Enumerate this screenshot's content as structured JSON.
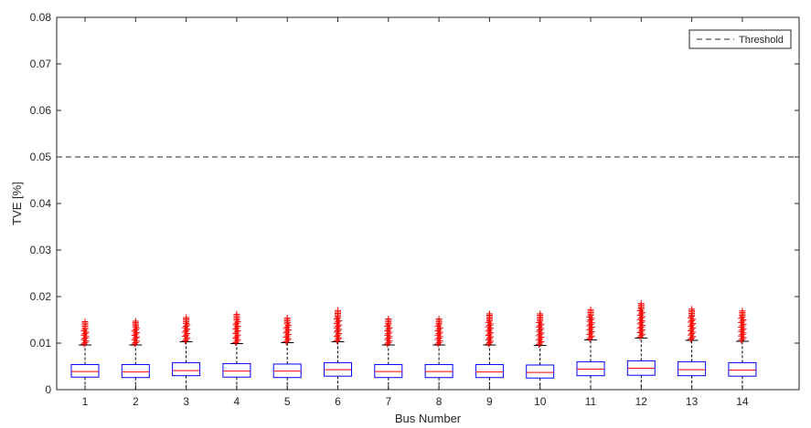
{
  "chart_data": {
    "type": "box",
    "title": "",
    "xlabel": "Bus Number",
    "ylabel": "TVE [%]",
    "ylim": [
      0,
      0.08
    ],
    "yticks": [
      0,
      0.01,
      0.02,
      0.03,
      0.04,
      0.05,
      0.06,
      0.07,
      0.08
    ],
    "ytick_labels": [
      "0",
      "0.01",
      "0.02",
      "0.03",
      "0.04",
      "0.05",
      "0.06",
      "0.07",
      "0.08"
    ],
    "categories": [
      "1",
      "2",
      "3",
      "4",
      "5",
      "6",
      "7",
      "8",
      "9",
      "10",
      "11",
      "12",
      "13",
      "14"
    ],
    "boxes": [
      {
        "whisker_low": 0.0,
        "q1": 0.0027,
        "median": 0.0039,
        "q3": 0.0054,
        "whisker_high": 0.0096,
        "outlier_min": 0.0098,
        "outlier_max": 0.0146
      },
      {
        "whisker_low": 0.0,
        "q1": 0.0026,
        "median": 0.0038,
        "q3": 0.0054,
        "whisker_high": 0.0096,
        "outlier_min": 0.0098,
        "outlier_max": 0.0147
      },
      {
        "whisker_low": 0.0,
        "q1": 0.003,
        "median": 0.0041,
        "q3": 0.0058,
        "whisker_high": 0.0103,
        "outlier_min": 0.0105,
        "outlier_max": 0.0155
      },
      {
        "whisker_low": 0.0,
        "q1": 0.0027,
        "median": 0.004,
        "q3": 0.0056,
        "whisker_high": 0.0099,
        "outlier_min": 0.0101,
        "outlier_max": 0.0162
      },
      {
        "whisker_low": 0.0,
        "q1": 0.0026,
        "median": 0.004,
        "q3": 0.0055,
        "whisker_high": 0.0101,
        "outlier_min": 0.0103,
        "outlier_max": 0.0154
      },
      {
        "whisker_low": 0.0,
        "q1": 0.0029,
        "median": 0.0043,
        "q3": 0.0058,
        "whisker_high": 0.0103,
        "outlier_min": 0.0105,
        "outlier_max": 0.017
      },
      {
        "whisker_low": 0.0,
        "q1": 0.0026,
        "median": 0.0039,
        "q3": 0.0054,
        "whisker_high": 0.0096,
        "outlier_min": 0.0098,
        "outlier_max": 0.0152
      },
      {
        "whisker_low": 0.0,
        "q1": 0.0026,
        "median": 0.0039,
        "q3": 0.0054,
        "whisker_high": 0.0096,
        "outlier_min": 0.0098,
        "outlier_max": 0.0152
      },
      {
        "whisker_low": 0.0,
        "q1": 0.0026,
        "median": 0.0038,
        "q3": 0.0054,
        "whisker_high": 0.0096,
        "outlier_min": 0.0098,
        "outlier_max": 0.0163
      },
      {
        "whisker_low": 0.0,
        "q1": 0.0025,
        "median": 0.0037,
        "q3": 0.0053,
        "whisker_high": 0.0095,
        "outlier_min": 0.0097,
        "outlier_max": 0.0163
      },
      {
        "whisker_low": 0.0,
        "q1": 0.003,
        "median": 0.0044,
        "q3": 0.006,
        "whisker_high": 0.0107,
        "outlier_min": 0.0109,
        "outlier_max": 0.0172
      },
      {
        "whisker_low": 0.0,
        "q1": 0.0031,
        "median": 0.0046,
        "q3": 0.0062,
        "whisker_high": 0.0111,
        "outlier_min": 0.0113,
        "outlier_max": 0.0185
      },
      {
        "whisker_low": 0.0,
        "q1": 0.003,
        "median": 0.0043,
        "q3": 0.006,
        "whisker_high": 0.0106,
        "outlier_min": 0.0108,
        "outlier_max": 0.0173
      },
      {
        "whisker_low": 0.0,
        "q1": 0.0029,
        "median": 0.0042,
        "q3": 0.0058,
        "whisker_high": 0.0104,
        "outlier_min": 0.0106,
        "outlier_max": 0.0169
      }
    ],
    "threshold": {
      "value": 0.05,
      "label": "Threshold"
    },
    "legend": {
      "placement": "top-right",
      "entries": [
        "Threshold"
      ]
    },
    "grid": false,
    "colors": {
      "box": "#0000ff",
      "median": "#ff0000",
      "whisker": "#000000",
      "outlier": "#ff0000",
      "threshold": "#262626",
      "axis": "#262626"
    }
  }
}
